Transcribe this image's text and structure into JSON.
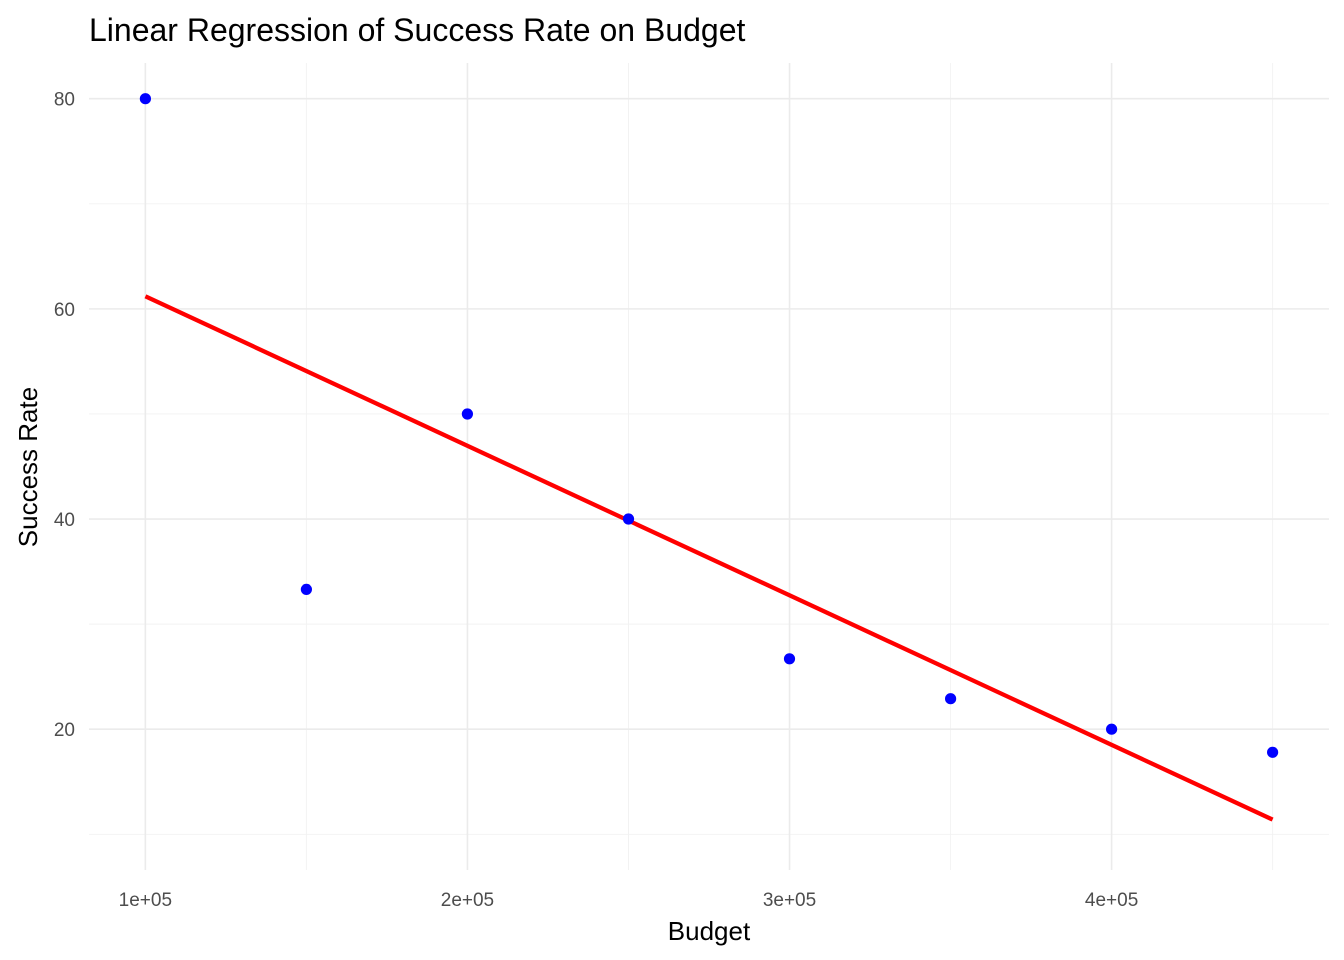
{
  "chart_data": {
    "type": "scatter",
    "title": "Linear Regression of Success Rate on Budget",
    "xlabel": "Budget",
    "ylabel": "Success Rate",
    "x_ticks": [
      {
        "value": 100000,
        "label": "1e+05"
      },
      {
        "value": 200000,
        "label": "2e+05"
      },
      {
        "value": 300000,
        "label": "3e+05"
      },
      {
        "value": 400000,
        "label": "4e+05"
      }
    ],
    "x_minor_ticks": [
      150000,
      250000,
      350000,
      450000
    ],
    "y_ticks": [
      {
        "value": 20,
        "label": "20"
      },
      {
        "value": 40,
        "label": "40"
      },
      {
        "value": 60,
        "label": "60"
      },
      {
        "value": 80,
        "label": "80"
      }
    ],
    "y_minor_ticks": [
      10,
      30,
      50,
      70
    ],
    "xlim": [
      82500,
      467500
    ],
    "ylim": [
      6.6,
      83.4
    ],
    "grid": true,
    "series": [
      {
        "type": "scatter",
        "color": "#0000ff",
        "points": [
          {
            "x": 100000,
            "y": 80.0
          },
          {
            "x": 150000,
            "y": 33.3
          },
          {
            "x": 200000,
            "y": 50.0
          },
          {
            "x": 250000,
            "y": 40.0
          },
          {
            "x": 300000,
            "y": 26.7
          },
          {
            "x": 350000,
            "y": 22.9
          },
          {
            "x": 400000,
            "y": 20.0
          },
          {
            "x": 450000,
            "y": 17.8
          }
        ]
      },
      {
        "type": "line",
        "color": "#ff0000",
        "points": [
          {
            "x": 100000,
            "y": 61.2
          },
          {
            "x": 450000,
            "y": 11.4
          }
        ]
      }
    ]
  }
}
